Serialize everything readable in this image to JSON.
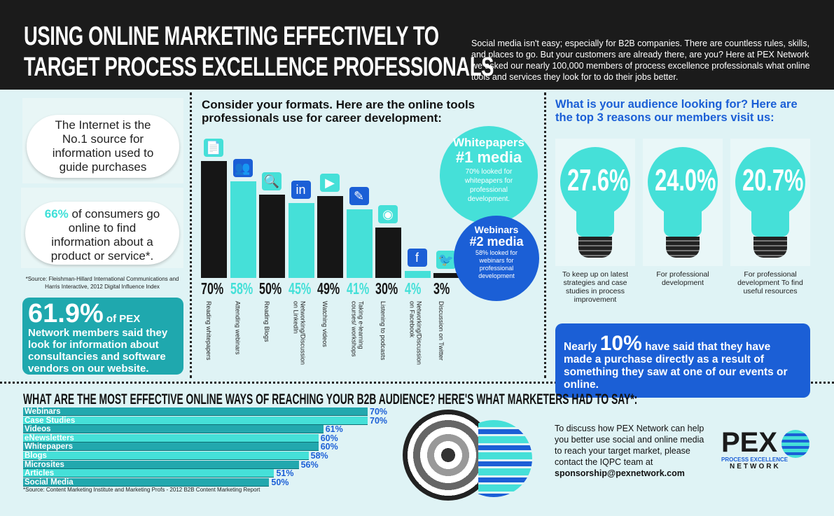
{
  "header": {
    "title_line1": "USING ONLINE MARKETING EFFECTIVELY TO",
    "title_line2": "TARGET PROCESS EXCELLENCE PROFESSIONALS",
    "intro": "Social media isn't easy; especially for B2B companies. There are countless rules, skills, and places to go. But your customers are already there, are you? Here at PEX Network we asked our nearly 100,000 members of process excellence professionals what online tools and services they look for to do their jobs better."
  },
  "left": {
    "cloud1": "The Internet is the No.1 source for information used to guide purchases",
    "cloud2_stat": "66%",
    "cloud2_text": "of consumers go online to find information about a product or service*.",
    "source": "*Source: Fleishman-Hillard International Communications and Harris Interactive, 2012 Digital Influence Index",
    "stat_big": "61.9%",
    "stat_small": "of PEX",
    "stat_text": "Network members said they look for information about consultancies and software vendors on our website."
  },
  "colors": {
    "cyan": "#45e0d8",
    "teal": "#1fa8ae",
    "blue": "#1b5fd6",
    "black": "#161616"
  },
  "chart_data": [
    {
      "type": "bar",
      "title": "Consider your formats. Here are the online tools professionals use for career development:",
      "categories": [
        "Reading whitepapers",
        "Attending webinars",
        "Reading Blogs",
        "Networking/Discussion on LinkedIn",
        "Watching videos",
        "Taking e-learning courses/ workshops",
        "Listening to podcasts",
        "Networking/Discussion on Facebook",
        "Discussion on Twitter"
      ],
      "values": [
        70,
        58,
        50,
        45,
        49,
        41,
        30,
        4,
        3
      ],
      "labels": [
        "70%",
        "58%",
        "50%",
        "45%",
        "49%",
        "41%",
        "30%",
        "4%",
        "3%"
      ],
      "icons": [
        "document-icon",
        "webinar-icon",
        "magnifier-icon",
        "linkedin-icon",
        "play-icon",
        "elearning-icon",
        "podcast-icon",
        "facebook-icon",
        "twitter-icon"
      ],
      "bar_colors": [
        "#161616",
        "#45e0d8",
        "#161616",
        "#45e0d8",
        "#161616",
        "#45e0d8",
        "#161616",
        "#45e0d8",
        "#161616"
      ],
      "ylim": [
        0,
        70
      ]
    },
    {
      "type": "bar",
      "orientation": "horizontal",
      "title": "WHAT ARE THE MOST EFFECTIVE ONLINE WAYS OF REACHING YOUR B2B AUDIENCE? HERE'S WHAT MARKETERS HAD TO SAY*:",
      "categories": [
        "Webinars",
        "Case Studies",
        "Videos",
        "eNewsletters",
        "Whitepapers",
        "Blogs",
        "Microsites",
        "Articles",
        "Social Media"
      ],
      "values": [
        70,
        70,
        61,
        60,
        60,
        58,
        56,
        51,
        50
      ],
      "labels": [
        "70%",
        "70%",
        "61%",
        "60%",
        "60%",
        "58%",
        "56%",
        "51%",
        "50%"
      ],
      "source": "*Source: Content Marketing Institute and Marketing Profs - 2012 B2B Content Marketing Report"
    }
  ],
  "circles": {
    "c1_title": "Whitepapers",
    "c1_rank": "#1 media",
    "c1_text": "70% looked for whitepapers for professional development.",
    "c2_title": "Webinars",
    "c2_rank": "#2 media",
    "c2_text": "58% looked for webinars for professional development"
  },
  "right": {
    "heading": "What is your audience looking for? Here are the top 3 reasons our members visit us:",
    "bulbs": [
      {
        "pct": "27.6%",
        "caption": "To keep up on latest strategies and case studies in process improvement"
      },
      {
        "pct": "24.0%",
        "caption": "For professional development"
      },
      {
        "pct": "20.7%",
        "caption": "For professional development To find useful resources"
      }
    ],
    "box_pre": "Nearly",
    "box_big": "10%",
    "box_text": "have said that they have made a purchase directly as a result of something they saw at one of our events or online.",
    "contact": "To discuss how PEX Network can help you better use social and online media to reach your target market, please contact the IQPC team at",
    "email": "sponsorship@pexnetwork.com",
    "logo_text": "PEX",
    "logo_sub1": "PROCESS EXCELLENCE",
    "logo_sub2": "NETWORK"
  }
}
